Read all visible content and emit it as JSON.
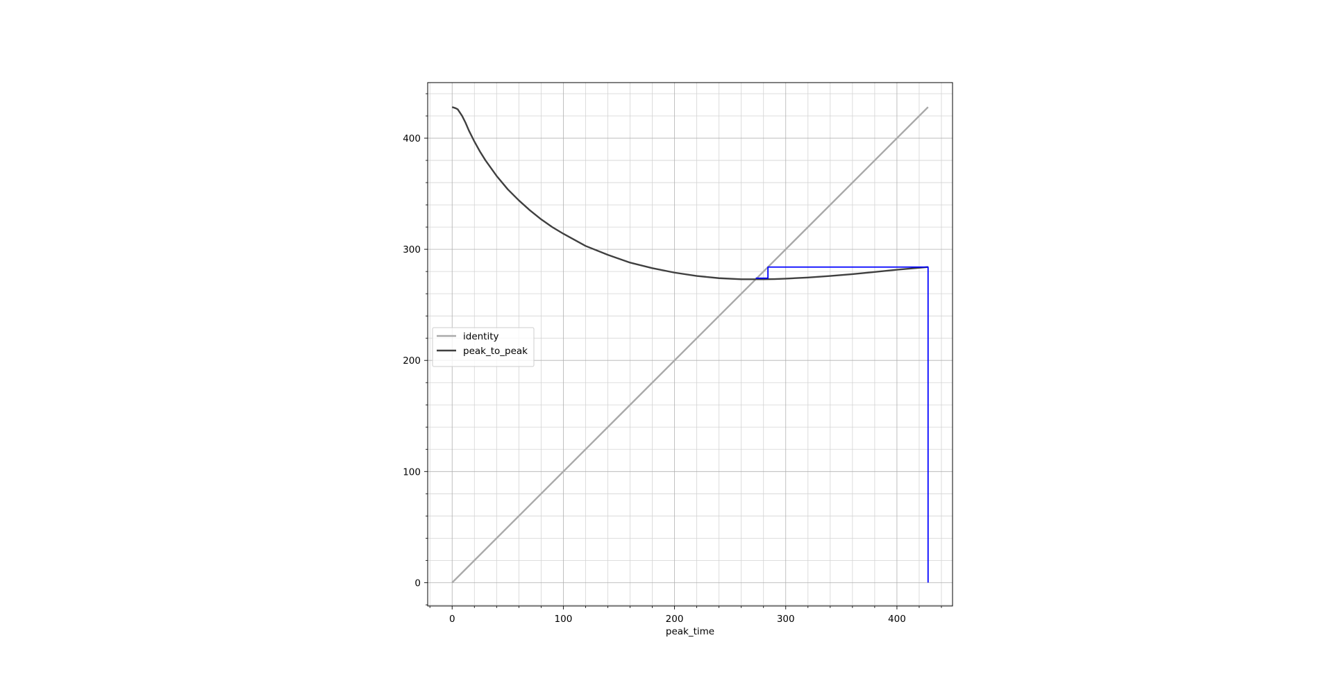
{
  "chart_data": {
    "type": "line",
    "title": "",
    "xlabel": "peak_time",
    "ylabel": "",
    "xlim": [
      -22,
      450
    ],
    "ylim": [
      -21,
      450
    ],
    "x_ticks": [
      0,
      100,
      200,
      300,
      400
    ],
    "y_ticks": [
      0,
      100,
      200,
      300,
      400
    ],
    "x_minor_step": 20,
    "y_minor_step": 20,
    "grid": true,
    "grid_minor": true,
    "legend_position": "center-left",
    "series": [
      {
        "name": "identity",
        "color": "#a9a9a9",
        "x": [
          0,
          428
        ],
        "y": [
          0,
          428
        ]
      },
      {
        "name": "peak_to_peak",
        "color": "#3f3f3f",
        "x": [
          0,
          3,
          5,
          7,
          9,
          12,
          15,
          20,
          25,
          30,
          40,
          50,
          60,
          70,
          80,
          90,
          100,
          120,
          140,
          160,
          180,
          200,
          220,
          240,
          260,
          270,
          280,
          290,
          300,
          320,
          340,
          360,
          380,
          400,
          428
        ],
        "y": [
          428,
          427,
          426,
          423,
          420,
          414,
          407,
          397,
          388,
          380,
          366,
          354,
          344,
          335,
          327,
          320,
          314,
          303,
          295,
          288,
          283,
          279,
          276,
          274,
          273,
          273,
          273,
          273.2,
          273.6,
          274.6,
          276,
          277.6,
          279.6,
          281.6,
          284
        ]
      },
      {
        "name": "",
        "color": "#0000ff",
        "x": [
          428,
          428,
          284,
          284,
          273
        ],
        "y": [
          0,
          284,
          284,
          274,
          274
        ]
      }
    ]
  }
}
